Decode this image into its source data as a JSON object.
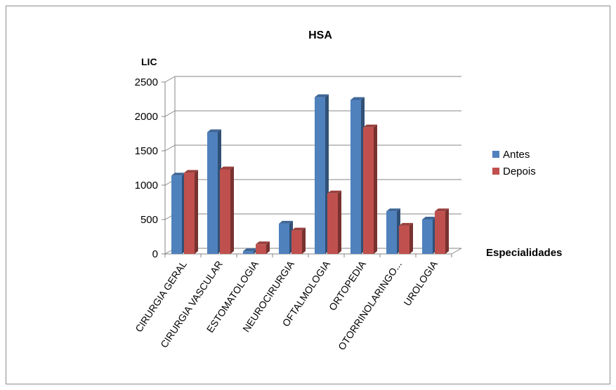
{
  "chart_data": {
    "type": "bar",
    "title": "HSA",
    "ylabel": "LIC",
    "xlabel": "Especialidades",
    "categories": [
      "CIRURGIA GERAL",
      "CIRURGIA VASCULAR",
      "ESTOMATOLOGIA",
      "NEUROCIRURGIA",
      "OFTALMOLOGIA",
      "ORTOPEDIA",
      "OTORRINOLARINGO...",
      "UROLOGIA"
    ],
    "series": [
      {
        "name": "Antes",
        "values": [
          1140,
          1770,
          40,
          440,
          2280,
          2240,
          620,
          500
        ],
        "color": "#4f81bd"
      },
      {
        "name": "Depois",
        "values": [
          1180,
          1230,
          140,
          340,
          880,
          1840,
          410,
          620
        ],
        "color": "#c0504d"
      }
    ],
    "yticks": [
      "0",
      "500",
      "1000",
      "1500",
      "2000",
      "2500"
    ],
    "ylim": [
      0,
      2500
    ],
    "grid": true,
    "legend_position": "right",
    "style": "3d-column"
  }
}
